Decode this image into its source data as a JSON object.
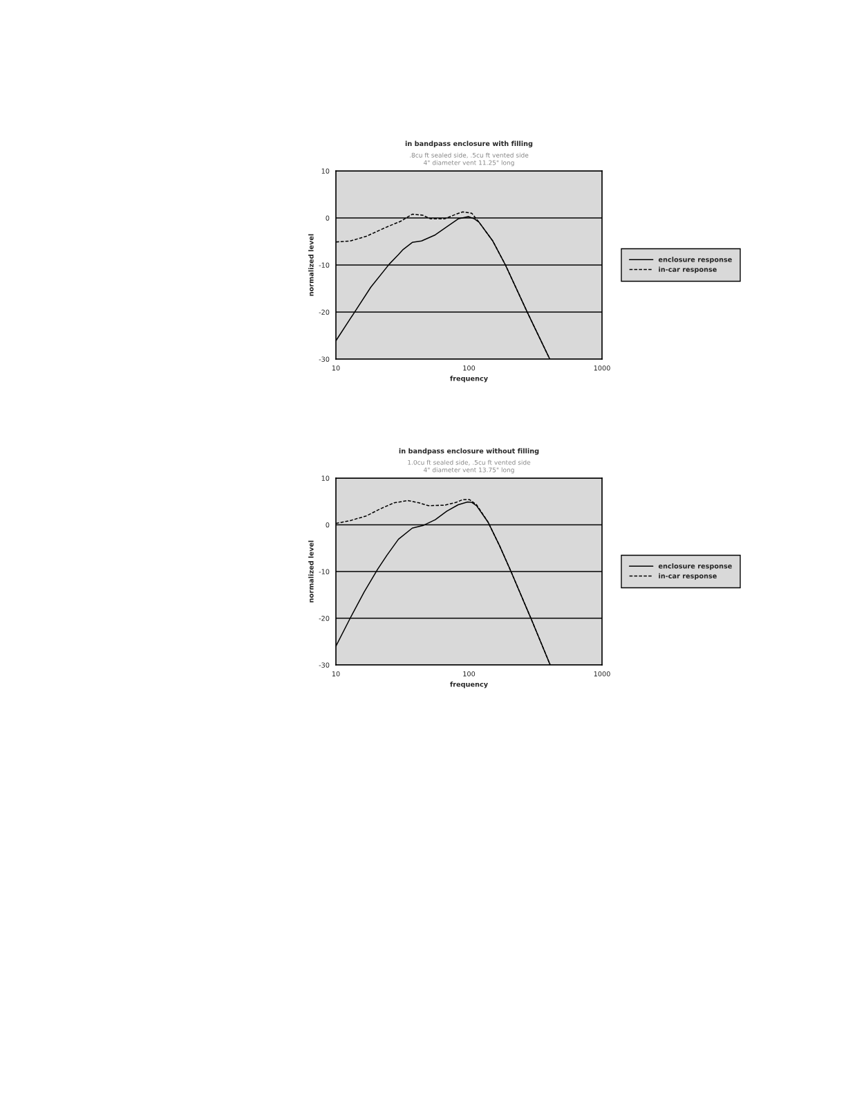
{
  "chart_data": [
    {
      "type": "line",
      "title": "in bandpass enclosure with filling",
      "subtitle": ".8cu ft sealed side, .5cu ft vented side\n4\" diameter vent 11.25\" long",
      "xlabel": "frequency",
      "ylabel": "normalized level",
      "log": "x",
      "xlim": [
        10,
        1000
      ],
      "xticks": [
        10,
        100,
        1000
      ],
      "ylim": [
        -30,
        10
      ],
      "yticks": [
        -30,
        -20,
        -10,
        0,
        10
      ],
      "grid": "y",
      "legend": "right",
      "series": [
        {
          "name": "enclosure response",
          "color": "#000000",
          "line_style": "solid",
          "x": [
            10,
            13.9,
            18.3,
            25.2,
            29.5,
            32,
            37.5,
            44,
            55.8,
            68,
            83,
            99,
            110,
            119,
            151,
            188,
            275,
            405
          ],
          "values": [
            -26.1,
            -19.9,
            -14.7,
            -9.8,
            -7.8,
            -6.7,
            -5.2,
            -4.9,
            -3.6,
            -1.9,
            -0.2,
            0.3,
            -0.2,
            -0.9,
            -4.9,
            -10,
            -20.1,
            -30
          ]
        },
        {
          "name": "in-car response",
          "color": "#000000",
          "line_style": "dashed",
          "x": [
            10,
            12.8,
            16.9,
            24.2,
            30.7,
            37.5,
            44.8,
            51.5,
            65.5,
            80,
            90,
            105,
            119,
            151,
            188,
            275,
            405
          ],
          "values": [
            -5.1,
            -4.9,
            -3.9,
            -1.9,
            -0.7,
            0.8,
            0.6,
            -0.2,
            -0.2,
            0.8,
            1.3,
            1.0,
            -0.9,
            -4.9,
            -10,
            -20.1,
            -30
          ]
        }
      ]
    },
    {
      "type": "line",
      "title": "in bandpass enclosure without filling",
      "subtitle": "1.0cu ft sealed side, .5cu ft vented side\n4\" diameter vent 13.75\" long",
      "xlabel": "frequency",
      "ylabel": "normalized level",
      "log": "x",
      "xlim": [
        10,
        1000
      ],
      "xticks": [
        10,
        100,
        1000
      ],
      "ylim": [
        -30,
        10
      ],
      "yticks": [
        -30,
        -20,
        -10,
        0,
        10
      ],
      "grid": "y",
      "legend": "right",
      "series": [
        {
          "name": "enclosure response",
          "color": "#000000",
          "line_style": "solid",
          "x": [
            10,
            12.8,
            16.3,
            20.6,
            24.2,
            29.5,
            37.5,
            45.6,
            55.8,
            68,
            83,
            97.5,
            105,
            114,
            139,
            170,
            207,
            295,
            408
          ],
          "values": [
            -26,
            -20,
            -14.4,
            -9.5,
            -6.5,
            -3.1,
            -0.7,
            -0.1,
            1.1,
            2.9,
            4.3,
            4.9,
            4.8,
            4.1,
            0.6,
            -4.5,
            -10,
            -20.3,
            -30
          ]
        },
        {
          "name": "in-car response",
          "color": "#000000",
          "line_style": "dashed",
          "x": [
            10,
            12.8,
            16.9,
            21.5,
            27.3,
            34.6,
            42.3,
            49.5,
            65.5,
            80,
            90,
            101,
            114,
            139,
            170,
            207,
            295,
            408
          ],
          "values": [
            0.3,
            0.9,
            1.9,
            3.4,
            4.7,
            5.2,
            4.7,
            4.1,
            4.2,
            4.8,
            5.4,
            5.4,
            4.3,
            0.6,
            -4.5,
            -10,
            -20.3,
            -30
          ]
        }
      ]
    }
  ]
}
